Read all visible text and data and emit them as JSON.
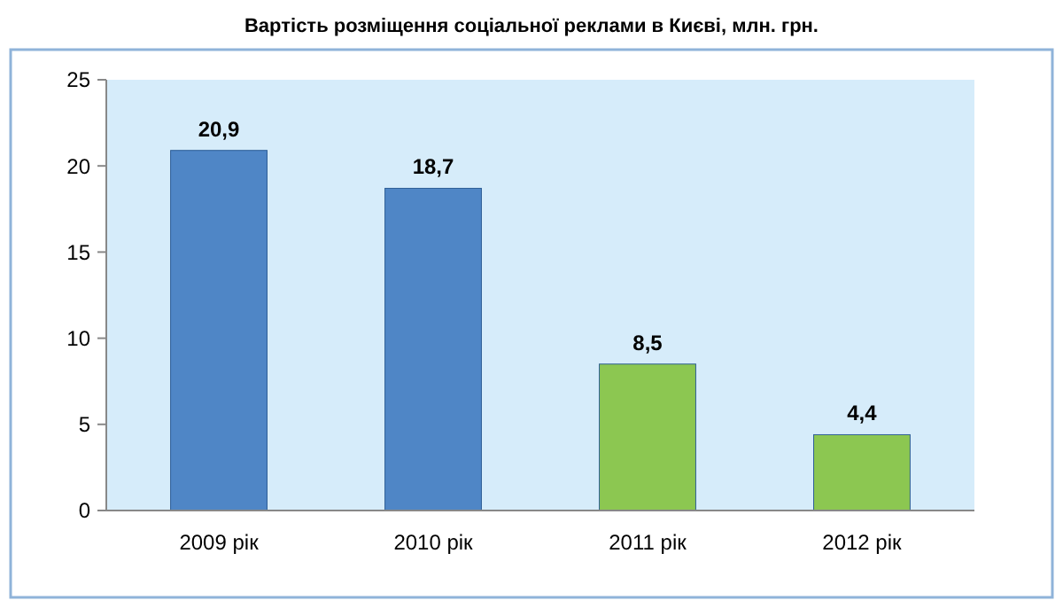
{
  "chart_data": {
    "type": "bar",
    "title": "Вартість розміщення соціальної реклами в Києві, млн. грн.",
    "categories": [
      "2009 рік",
      "2010 рік",
      "2011 рік",
      "2012 рік"
    ],
    "values": [
      20.9,
      18.7,
      8.5,
      4.4
    ],
    "colors": [
      "#4f86c6",
      "#4f86c6",
      "#8cc751",
      "#8cc751"
    ],
    "value_labels": [
      "20,9",
      "18,7",
      "8,5",
      "4,4"
    ],
    "ylim": [
      0,
      25
    ],
    "yticks": [
      0,
      5,
      10,
      15,
      20,
      25
    ]
  }
}
